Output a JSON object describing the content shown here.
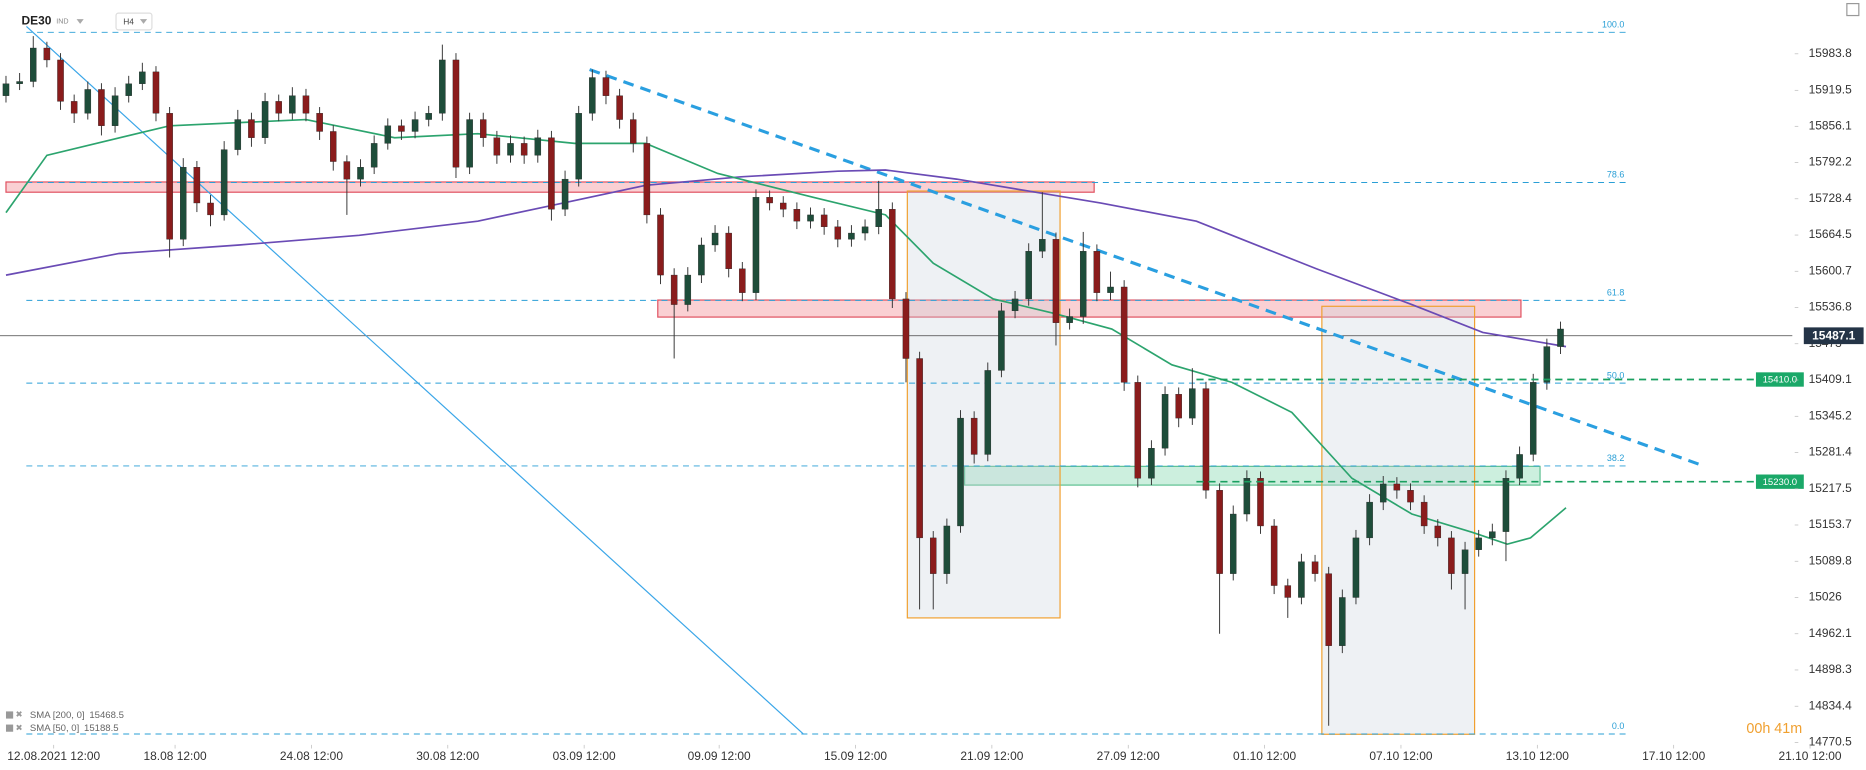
{
  "chart_data": {
    "type": "candlestick",
    "symbol": "DE30",
    "market": "IND",
    "timeframe": "H4",
    "timer": "00h 41m",
    "xlim": [
      0,
      131
    ],
    "ylim": [
      14768.4,
      16078.6
    ],
    "xticks": [
      {
        "value": 3.5,
        "label": "12.08.2021 12:00"
      },
      {
        "value": 12.4,
        "label": "18.08 12:00"
      },
      {
        "value": 22.4,
        "label": "24.08 12:00"
      },
      {
        "value": 32.4,
        "label": "30.08 12:00"
      },
      {
        "value": 42.4,
        "label": "03.09 12:00"
      },
      {
        "value": 52.3,
        "label": "09.09 12:00"
      },
      {
        "value": 62.3,
        "label": "15.09 12:00"
      },
      {
        "value": 72.3,
        "label": "21.09 12:00"
      },
      {
        "value": 82.3,
        "label": "27.09 12:00"
      },
      {
        "value": 92.3,
        "label": "01.10 12:00"
      },
      {
        "value": 102.3,
        "label": "07.10 12:00"
      },
      {
        "value": 112.3,
        "label": "13.10 12:00"
      },
      {
        "value": 122.3,
        "label": "17.10 12:00"
      },
      {
        "value": 132.3,
        "label": "21.10 12:00"
      }
    ],
    "yticks": [
      15983.8,
      15919.5,
      15856.1,
      15792.2,
      15728.4,
      15664.5,
      15600.7,
      15536.8,
      15473.0,
      15409.1,
      15345.2,
      15281.4,
      15217.5,
      15153.7,
      15089.8,
      15026.0,
      14962.1,
      14898.3,
      14834.4,
      14770.5
    ],
    "current_price": 15487.1,
    "up_color": "#1e4d3a",
    "down_color": "#8a1c1c",
    "candles": [
      [
        15910,
        15945,
        15898,
        15931
      ],
      [
        15931,
        15950,
        15920,
        15935
      ],
      [
        15935,
        16015,
        15925,
        15994
      ],
      [
        15994,
        16005,
        15960,
        15973
      ],
      [
        15973,
        15985,
        15885,
        15900
      ],
      [
        15900,
        15912,
        15862,
        15879
      ],
      [
        15879,
        15935,
        15868,
        15921
      ],
      [
        15921,
        15932,
        15840,
        15857
      ],
      [
        15857,
        15925,
        15845,
        15910
      ],
      [
        15910,
        15945,
        15898,
        15931
      ],
      [
        15931,
        15968,
        15920,
        15952
      ],
      [
        15952,
        15962,
        15865,
        15879
      ],
      [
        15879,
        15890,
        15625,
        15657
      ],
      [
        15657,
        15800,
        15645,
        15784
      ],
      [
        15784,
        15795,
        15705,
        15721
      ],
      [
        15721,
        15735,
        15680,
        15700
      ],
      [
        15700,
        15830,
        15690,
        15815
      ],
      [
        15815,
        15885,
        15805,
        15868
      ],
      [
        15868,
        15880,
        15820,
        15836
      ],
      [
        15836,
        15915,
        15825,
        15900
      ],
      [
        15900,
        15912,
        15865,
        15879
      ],
      [
        15879,
        15925,
        15868,
        15910
      ],
      [
        15910,
        15922,
        15865,
        15879
      ],
      [
        15879,
        15890,
        15832,
        15847
      ],
      [
        15847,
        15858,
        15778,
        15794
      ],
      [
        15794,
        15805,
        15700,
        15763
      ],
      [
        15763,
        15798,
        15750,
        15784
      ],
      [
        15784,
        15840,
        15772,
        15826
      ],
      [
        15826,
        15870,
        15815,
        15857
      ],
      [
        15857,
        15868,
        15832,
        15847
      ],
      [
        15847,
        15882,
        15835,
        15868
      ],
      [
        15868,
        15892,
        15856,
        15879
      ],
      [
        15879,
        16000,
        15866,
        15973
      ],
      [
        15973,
        15985,
        15765,
        15784
      ],
      [
        15784,
        15880,
        15772,
        15868
      ],
      [
        15868,
        15880,
        15820,
        15836
      ],
      [
        15836,
        15848,
        15790,
        15805
      ],
      [
        15805,
        15840,
        15792,
        15826
      ],
      [
        15826,
        15838,
        15790,
        15805
      ],
      [
        15805,
        15850,
        15792,
        15836
      ],
      [
        15836,
        15848,
        15690,
        15710
      ],
      [
        15710,
        15778,
        15698,
        15763
      ],
      [
        15763,
        15892,
        15750,
        15879
      ],
      [
        15879,
        15956,
        15866,
        15942
      ],
      [
        15942,
        15954,
        15895,
        15910
      ],
      [
        15910,
        15922,
        15852,
        15868
      ],
      [
        15868,
        15880,
        15810,
        15826
      ],
      [
        15826,
        15838,
        15685,
        15700
      ],
      [
        15700,
        15712,
        15578,
        15594
      ],
      [
        15594,
        15606,
        15447,
        15542
      ],
      [
        15542,
        15608,
        15530,
        15594
      ],
      [
        15594,
        15660,
        15580,
        15647
      ],
      [
        15647,
        15682,
        15635,
        15668
      ],
      [
        15668,
        15680,
        15590,
        15605
      ],
      [
        15605,
        15617,
        15548,
        15563
      ],
      [
        15563,
        15745,
        15550,
        15731
      ],
      [
        15731,
        15743,
        15708,
        15721
      ],
      [
        15721,
        15733,
        15696,
        15710
      ],
      [
        15710,
        15722,
        15675,
        15689
      ],
      [
        15689,
        15713,
        15676,
        15700
      ],
      [
        15700,
        15712,
        15665,
        15679
      ],
      [
        15679,
        15691,
        15643,
        15657
      ],
      [
        15657,
        15682,
        15644,
        15668
      ],
      [
        15668,
        15692,
        15655,
        15679
      ],
      [
        15679,
        15760,
        15666,
        15710
      ],
      [
        15710,
        15722,
        15536,
        15552
      ],
      [
        15552,
        15564,
        15405,
        15447
      ],
      [
        15447,
        15459,
        15005,
        15131
      ],
      [
        15131,
        15143,
        15005,
        15068
      ],
      [
        15068,
        15165,
        15050,
        15152
      ],
      [
        15152,
        15356,
        15140,
        15342
      ],
      [
        15342,
        15354,
        15262,
        15278
      ],
      [
        15278,
        15440,
        15266,
        15426
      ],
      [
        15426,
        15545,
        15414,
        15531
      ],
      [
        15531,
        15566,
        15518,
        15552
      ],
      [
        15552,
        15650,
        15540,
        15636
      ],
      [
        15636,
        15740,
        15624,
        15657
      ],
      [
        15657,
        15669,
        15470,
        15510
      ],
      [
        15510,
        15535,
        15498,
        15521
      ],
      [
        15521,
        15670,
        15508,
        15636
      ],
      [
        15636,
        15648,
        15548,
        15563
      ],
      [
        15563,
        15600,
        15550,
        15573
      ],
      [
        15573,
        15585,
        15390,
        15405
      ],
      [
        15405,
        15417,
        15220,
        15236
      ],
      [
        15236,
        15303,
        15224,
        15289
      ],
      [
        15289,
        15398,
        15276,
        15384
      ],
      [
        15384,
        15396,
        15326,
        15342
      ],
      [
        15342,
        15430,
        15330,
        15394
      ],
      [
        15394,
        15406,
        15200,
        15215
      ],
      [
        15215,
        15227,
        14962,
        15068
      ],
      [
        15068,
        15188,
        15056,
        15173
      ],
      [
        15173,
        15250,
        15160,
        15236
      ],
      [
        15236,
        15248,
        15138,
        15152
      ],
      [
        15152,
        15164,
        15032,
        15047
      ],
      [
        15047,
        15059,
        14990,
        15026
      ],
      [
        15026,
        15103,
        15014,
        15089
      ],
      [
        15089,
        15101,
        15054,
        15068
      ],
      [
        15068,
        15080,
        14800,
        14941
      ],
      [
        14941,
        15040,
        14928,
        15026
      ],
      [
        15026,
        15145,
        15014,
        15131
      ],
      [
        15131,
        15208,
        15118,
        15194
      ],
      [
        15194,
        15240,
        15180,
        15226
      ],
      [
        15226,
        15238,
        15200,
        15215
      ],
      [
        15215,
        15227,
        15180,
        15194
      ],
      [
        15194,
        15206,
        15138,
        15152
      ],
      [
        15152,
        15164,
        15116,
        15131
      ],
      [
        15131,
        15143,
        15040,
        15068
      ],
      [
        15068,
        15124,
        15005,
        15110
      ],
      [
        15110,
        15145,
        15098,
        15131
      ],
      [
        15131,
        15156,
        15118,
        15142
      ],
      [
        15142,
        15250,
        15090,
        15236
      ],
      [
        15236,
        15292,
        15224,
        15278
      ],
      [
        15278,
        15420,
        15266,
        15405
      ],
      [
        15405,
        15482,
        15392,
        15468
      ],
      [
        15468,
        15512,
        15455,
        15499
      ]
    ],
    "series": [
      {
        "name": "SMA [200, 0]",
        "last": 15468.5,
        "color": "#6a4bb5",
        "x": [
          0,
          8.3,
          17.1,
          25.9,
          34.6,
          39.9,
          46.9,
          53.9,
          61,
          64.5,
          69.7,
          75,
          80.3,
          87.3,
          96.1,
          103.1,
          108.3,
          114.4
        ],
        "values": [
          15594,
          15632,
          15647,
          15664,
          15689,
          15716,
          15752,
          15767,
          15777,
          15779,
          15763,
          15742,
          15721,
          15689,
          15605,
          15542,
          15493,
          15468
        ]
      },
      {
        "name": "SMA [50, 0]",
        "last": 15188.5,
        "color": "#2ca46e",
        "x": [
          0,
          3,
          12,
          22,
          28.5,
          34.6,
          41.7,
          46.9,
          52.2,
          59.2,
          64.5,
          68,
          72.4,
          76.8,
          81.1,
          85.5,
          89.9,
          94.3,
          98.7,
          103.1,
          107.5,
          110.1,
          111.8,
          114.4
        ],
        "values": [
          15704,
          15805,
          15857,
          15868,
          15836,
          15843,
          15826,
          15826,
          15773,
          15731,
          15700,
          15615,
          15552,
          15527,
          15499,
          15436,
          15405,
          15352,
          15236,
          15173,
          15141,
          15120,
          15131,
          15184
        ]
      }
    ],
    "fibonacci": [
      {
        "ratio": {
          "value": 100,
          "label": "100.0"
        },
        "price": 16021.7
      },
      {
        "ratio": 78.6,
        "price": 15757.1
      },
      {
        "ratio": 61.8,
        "price": 15549.4
      },
      {
        "ratio": {
          "value": 50,
          "label": "50.0"
        },
        "price": 15403.6
      },
      {
        "ratio": 38.2,
        "price": 15257.7
      },
      {
        "ratio": {
          "value": 0,
          "label": "0.0"
        },
        "price": 14785.5
      }
    ],
    "levels": [
      {
        "start": 87.3,
        "price": {
          "value": 15410,
          "label": "15410.0"
        }
      },
      {
        "start": 87.3,
        "price": {
          "value": 15230,
          "label": "15230.0"
        }
      }
    ],
    "trendlines": [
      {
        "x": [
          42.8,
          124.6
        ],
        "prices": [
          15956,
          15257
        ],
        "style": "thick"
      },
      {
        "x": [
          1.5,
          58.5
        ],
        "prices": [
          16032,
          14785
        ],
        "style": "thin"
      }
    ],
    "zones": [
      {
        "x": [
          0,
          79.8
        ],
        "prices": [
          15758,
          15740
        ],
        "kind": "resistance"
      },
      {
        "x": [
          47.8,
          111.1
        ],
        "prices": [
          15550,
          15520
        ],
        "kind": "resistance"
      },
      {
        "x": [
          70.3,
          112.5
        ],
        "prices": [
          15257,
          15224
        ],
        "kind": "support"
      },
      {
        "x": [
          66.1,
          77.3
        ],
        "prices": [
          15742,
          14990
        ],
        "kind": "range"
      },
      {
        "x": [
          96.5,
          107.7
        ],
        "prices": [
          15539,
          14785
        ],
        "kind": "range"
      }
    ]
  }
}
